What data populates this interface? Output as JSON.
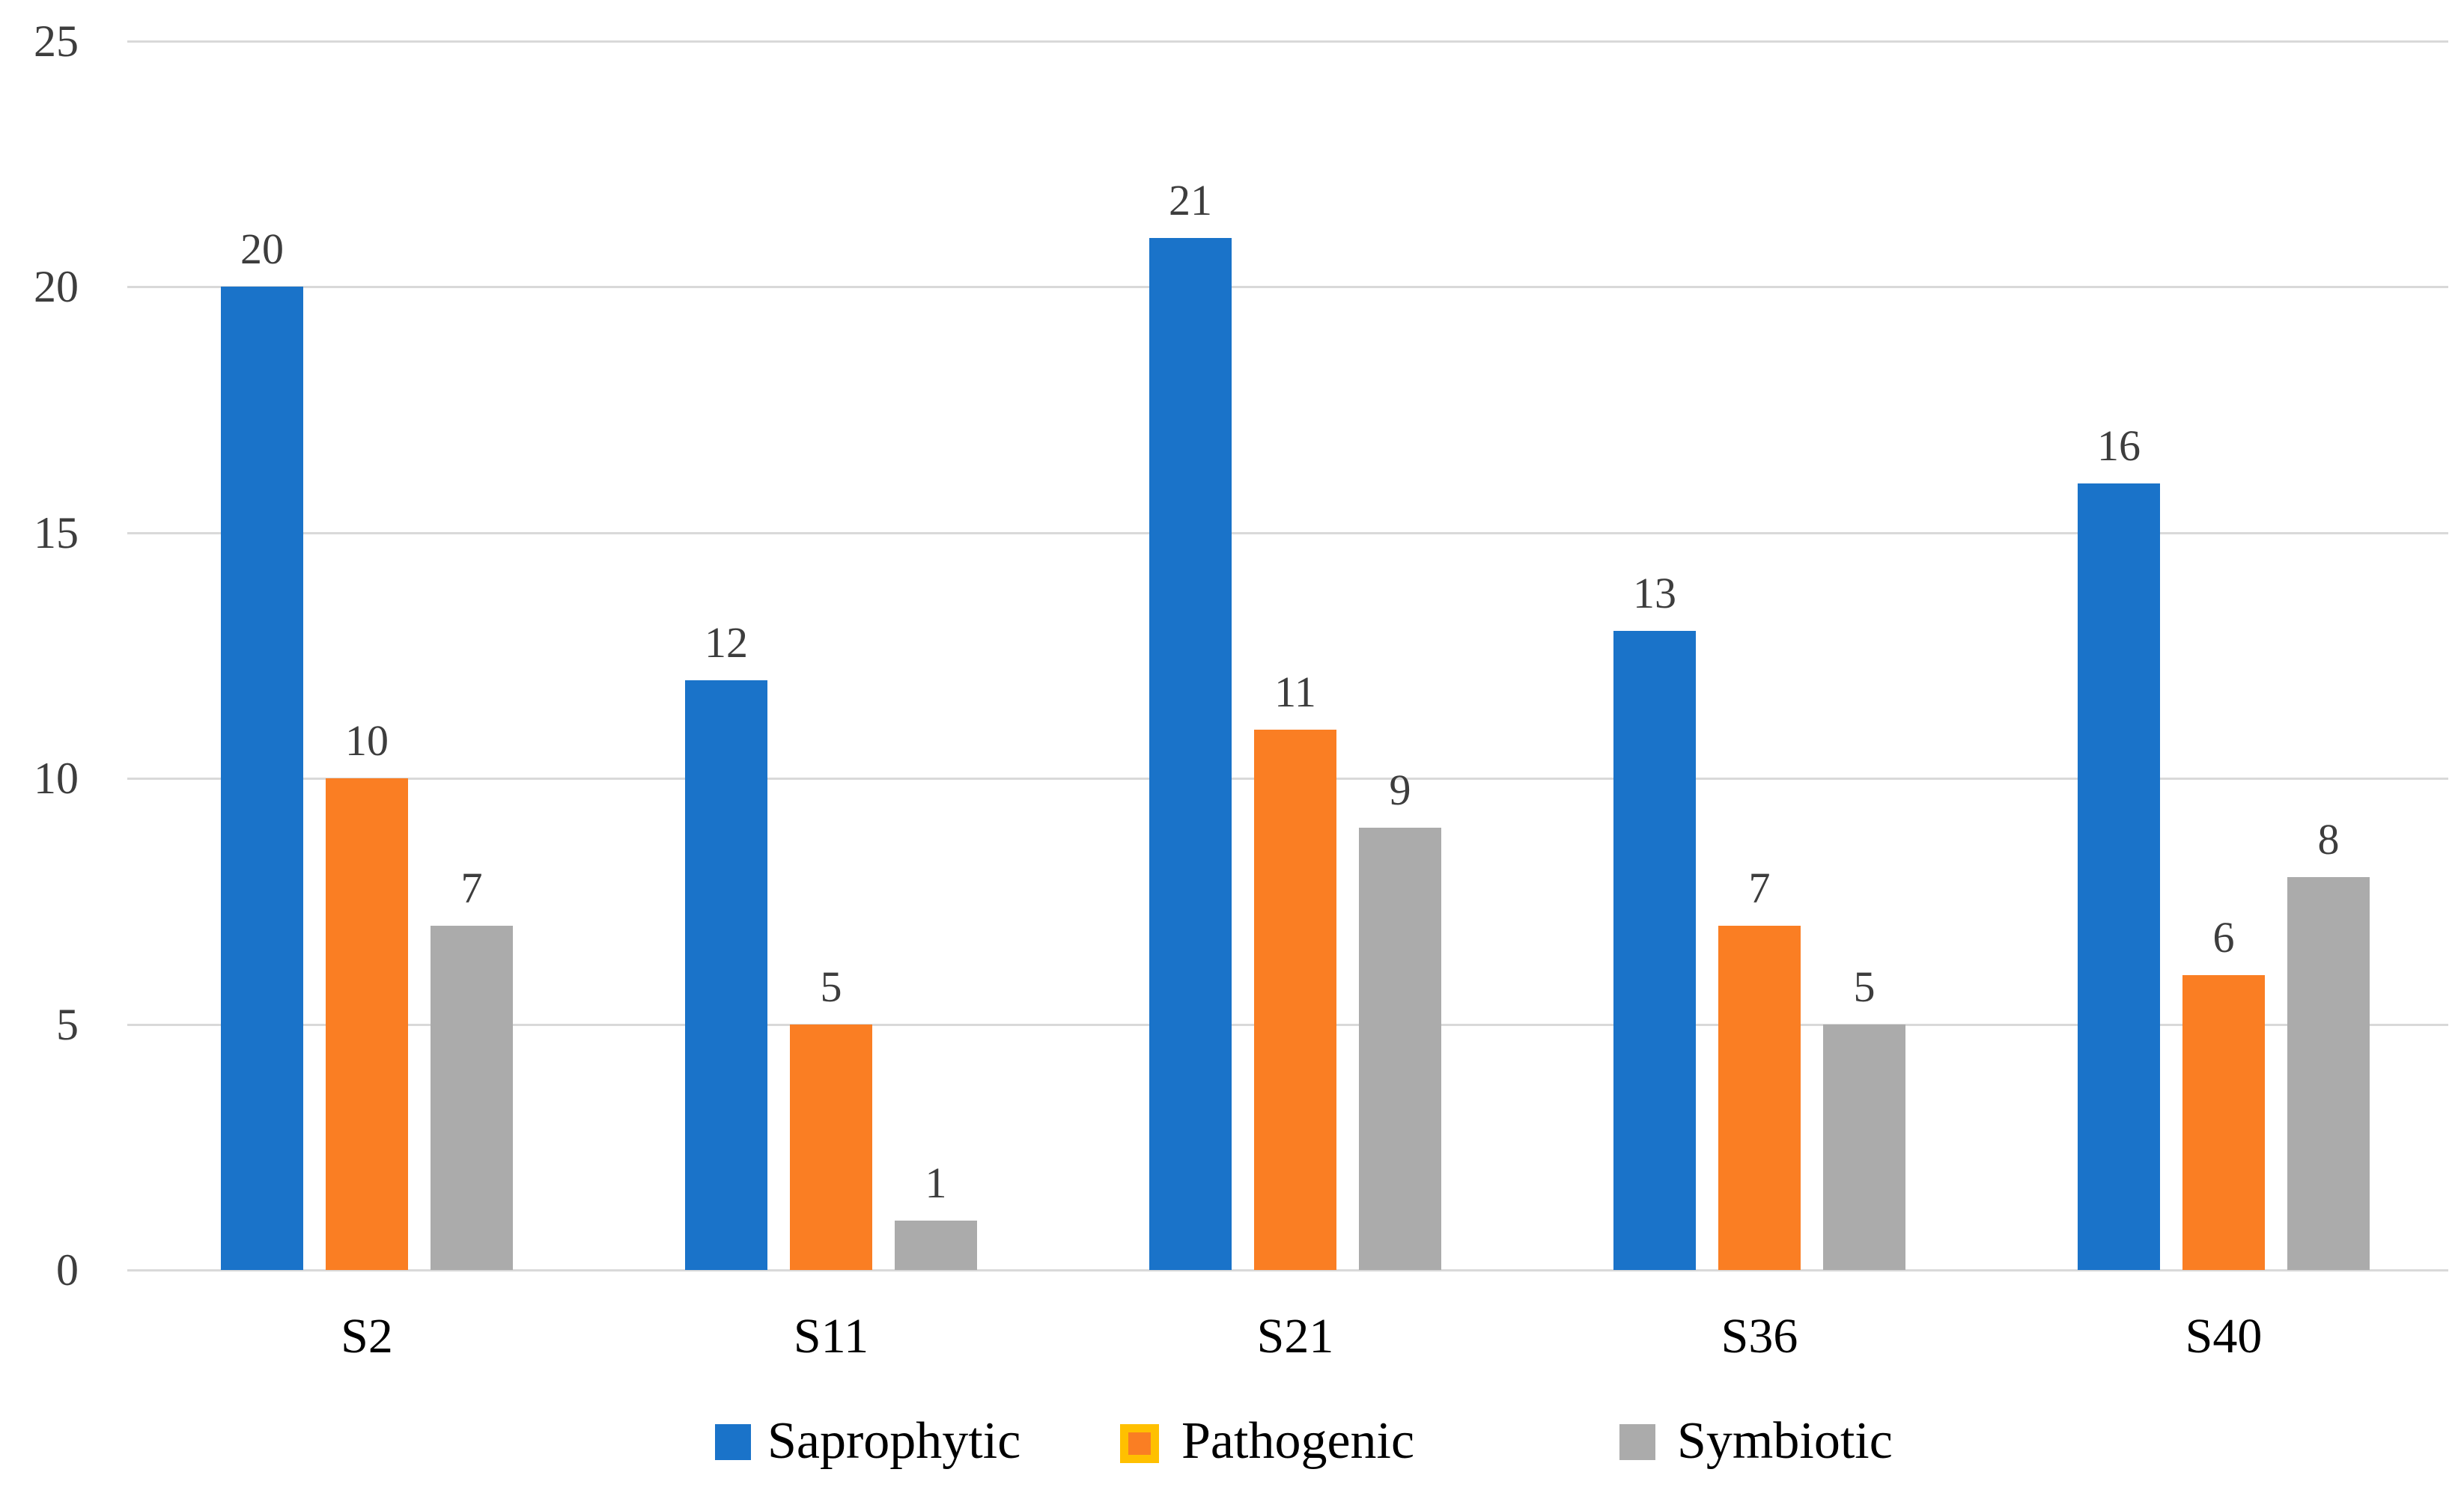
{
  "chart_data": {
    "type": "bar",
    "title": "",
    "xlabel": "",
    "ylabel": "",
    "categories": [
      "S2",
      "S11",
      "S21",
      "S36",
      "S40"
    ],
    "series": [
      {
        "name": "Saprophytic",
        "color": "#1a73c9",
        "values": [
          20,
          12,
          21,
          13,
          16
        ]
      },
      {
        "name": "Pathogenic",
        "color": "#fa7e23",
        "swatch_border_color": "#ffc000",
        "values": [
          10,
          5,
          11,
          7,
          6
        ]
      },
      {
        "name": "Symbiotic",
        "color": "#ababab",
        "values": [
          7,
          1,
          9,
          5,
          8
        ]
      }
    ],
    "ylim": [
      0,
      25
    ],
    "yticks": [
      0,
      5,
      10,
      15,
      20,
      25
    ],
    "grid": true,
    "gridline_color": "#d9d9d9",
    "value_labels_shown": true,
    "legend_position": "bottom",
    "tick_label_color": "#3d3d3d",
    "category_label_color": "#000000",
    "background_color": "#ffffff"
  }
}
